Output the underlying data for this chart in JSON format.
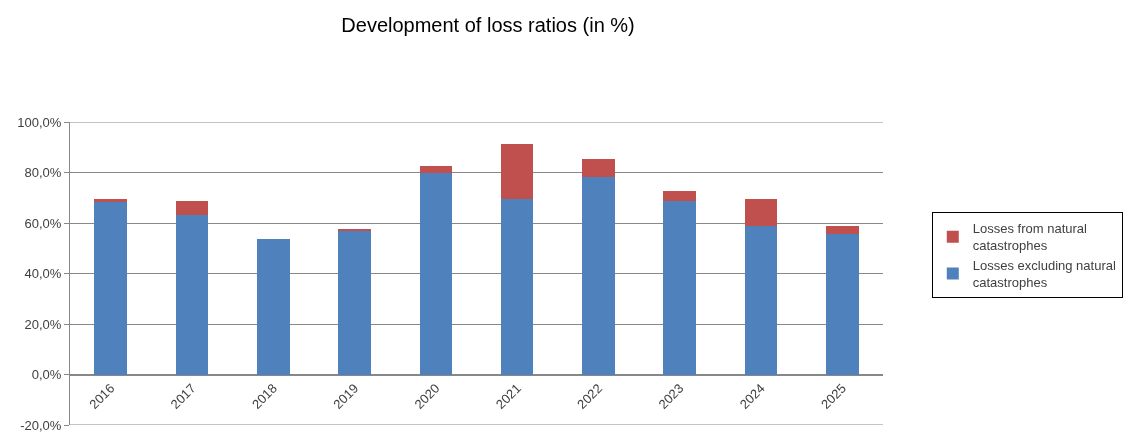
{
  "chart_data": {
    "type": "bar",
    "title": "Development of loss ratios (in %)",
    "stacked": true,
    "categories": [
      "2016",
      "2017",
      "2018",
      "2019",
      "2020",
      "2021",
      "2022",
      "2023",
      "2024",
      "2025"
    ],
    "series": [
      {
        "name": "Losses excluding natural catastrophes",
        "color": "#4f81bd",
        "values": [
          68.3,
          63.3,
          53.8,
          57.1,
          79.9,
          69.6,
          78.1,
          68.6,
          58.7,
          55.7
        ]
      },
      {
        "name": "Losses from natural catastrophes",
        "color": "#c0504d",
        "values": [
          1.3,
          5.3,
          0,
          0.3,
          2.5,
          21.5,
          7.4,
          4.1,
          10.9,
          3.3
        ]
      }
    ],
    "ylim": [
      -20,
      100
    ],
    "yticks": [
      {
        "value": -20,
        "label": "-20,0%"
      },
      {
        "value": 0,
        "label": "0,0%"
      },
      {
        "value": 20,
        "label": "20,0%"
      },
      {
        "value": 40,
        "label": "40,0%"
      },
      {
        "value": 60,
        "label": "60,0%"
      },
      {
        "value": 80,
        "label": "80,0%"
      },
      {
        "value": 100,
        "label": "100,0%"
      }
    ],
    "grid": "y",
    "legend": "right"
  }
}
